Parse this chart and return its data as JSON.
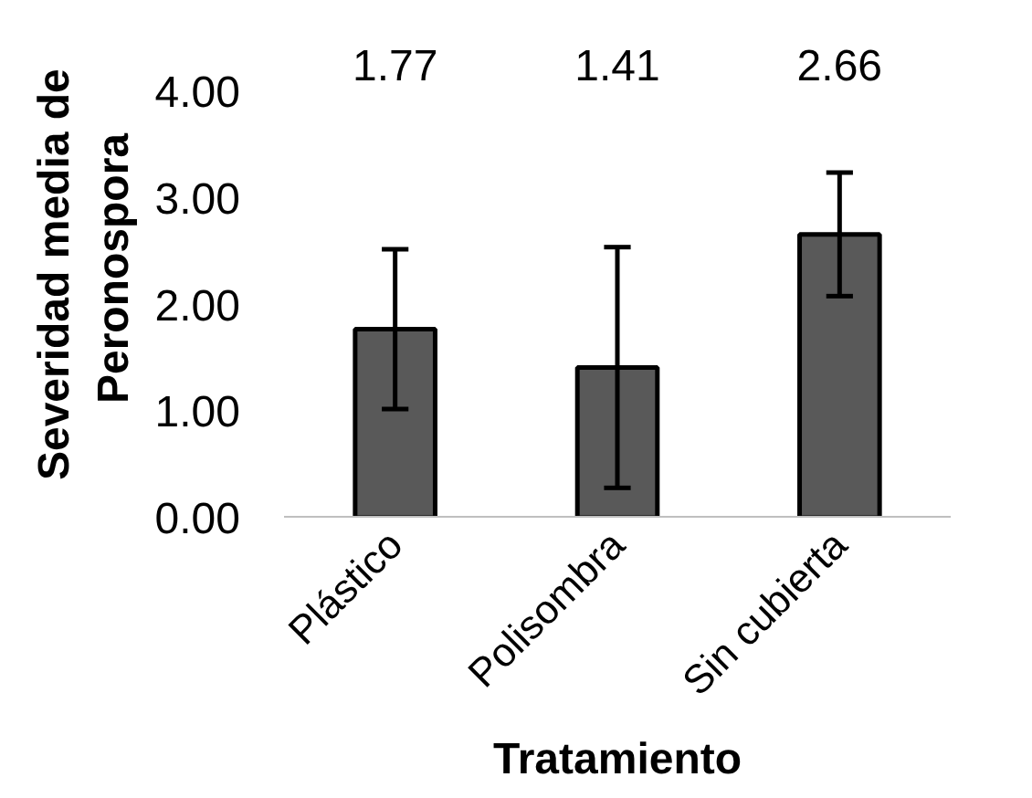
{
  "chart_data": {
    "type": "bar",
    "xlabel": "Tratamiento",
    "ylabel": "Severidad  media de Peronospora",
    "categories": [
      "Plástico",
      "Polisombra",
      "Sin cubierta"
    ],
    "values": [
      1.77,
      1.41,
      2.66
    ],
    "errors": [
      0.75,
      1.13,
      0.58
    ],
    "color": "#595959",
    "annotations": [
      "1.77",
      "1.41",
      "2.66"
    ],
    "ylim": [
      0,
      4
    ],
    "yticks": [
      {
        "value": 0,
        "label": "0.00"
      },
      {
        "value": 1,
        "label": "1.00"
      },
      {
        "value": 2,
        "label": "2.00"
      },
      {
        "value": 3,
        "label": "3.00"
      },
      {
        "value": 4,
        "label": "4.00"
      }
    ],
    "grid": false
  }
}
